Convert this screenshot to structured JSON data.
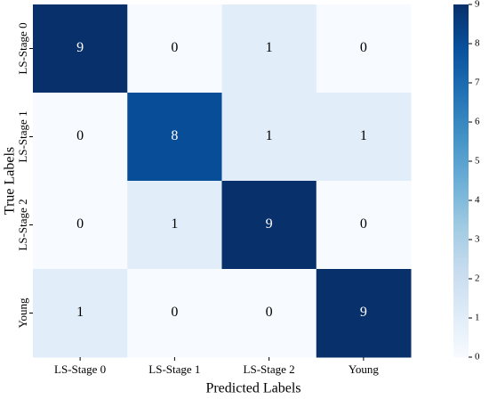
{
  "chart_data": {
    "type": "heatmap",
    "x_label": "Predicted Labels",
    "y_label": "True Labels",
    "x_categories": [
      "LS-Stage 0",
      "LS-Stage 1",
      "LS-Stage 2",
      "Young"
    ],
    "y_categories": [
      "LS-Stage 0",
      "LS-Stage 1",
      "LS-Stage 2",
      "Young"
    ],
    "values": [
      [
        9,
        0,
        1,
        0
      ],
      [
        0,
        8,
        1,
        1
      ],
      [
        0,
        1,
        9,
        0
      ],
      [
        1,
        0,
        0,
        9
      ]
    ],
    "colormap": "Blues",
    "clim": [
      0,
      9
    ],
    "cticks": [
      0,
      1,
      2,
      3,
      4,
      5,
      6,
      7,
      8,
      9
    ]
  }
}
